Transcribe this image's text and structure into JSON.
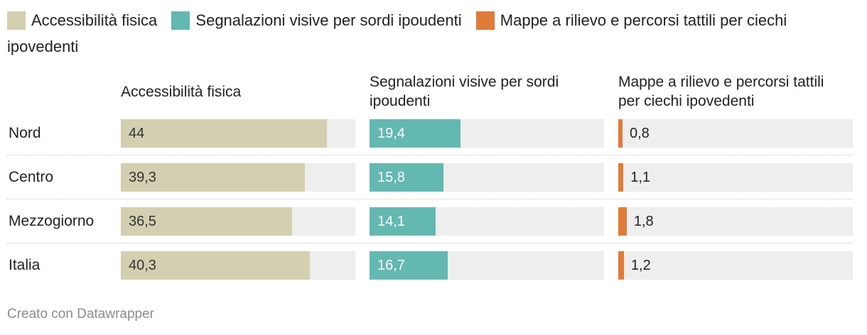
{
  "legend": [
    {
      "label": "Accessibilità fisica",
      "color": "#d3cfb0"
    },
    {
      "label": "Segnalazioni visive per sordi ipoudenti",
      "color": "#63b8b1"
    },
    {
      "label": "Mappe a rilievo e percorsi tattili per ciechi ipovedenti",
      "color": "#e07b39"
    }
  ],
  "chart_data": {
    "type": "bar",
    "orientation": "horizontal",
    "categories": [
      "Nord",
      "Centro",
      "Mezzogiorno",
      "Italia"
    ],
    "series": [
      {
        "name": "Accessibilità fisica",
        "color": "#d3cfb0",
        "values": [
          44,
          39.3,
          36.5,
          40.3
        ],
        "labels": [
          "44",
          "39,3",
          "36,5",
          "40,3"
        ]
      },
      {
        "name": "Segnalazioni visive per sordi ipoudenti",
        "color": "#63b8b1",
        "values": [
          19.4,
          15.8,
          14.1,
          16.7
        ],
        "labels": [
          "19,4",
          "15,8",
          "14,1",
          "16,7"
        ]
      },
      {
        "name": "Mappe a rilievo e percorsi tattili per ciechi ipovedenti",
        "color": "#e07b39",
        "values": [
          0.8,
          1.1,
          1.8,
          1.2
        ],
        "labels": [
          "0,8",
          "1,1",
          "1,8",
          "1,2"
        ]
      }
    ],
    "xlim": [
      0,
      50
    ],
    "column_headers": [
      "Accessibilità fisica",
      "Segnalazioni visive per sordi ipoudenti",
      "Mappe a rilievo e percorsi tattili per ciechi ipovedenti"
    ]
  },
  "footer": "Creato con Datawrapper"
}
